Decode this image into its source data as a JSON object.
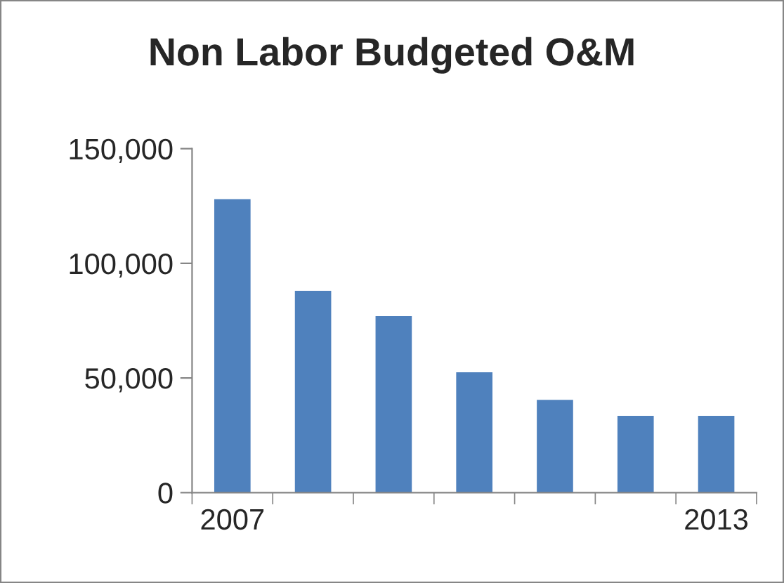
{
  "chart_data": {
    "type": "bar",
    "title": "Non Labor Budgeted O&M",
    "categories": [
      "2007",
      null,
      null,
      null,
      null,
      null,
      "2013"
    ],
    "values": [
      128000,
      88000,
      77000,
      52500,
      40500,
      33500,
      33500
    ],
    "color": "#4f81bd",
    "ylim": [
      0,
      150000
    ],
    "yticks": [
      {
        "value": 0,
        "label": "0"
      },
      {
        "value": 50000,
        "label": "50,000"
      },
      {
        "value": 100000,
        "label": "100,000"
      },
      {
        "value": 150000,
        "label": "150,000"
      }
    ],
    "grid": false,
    "legend": false
  }
}
